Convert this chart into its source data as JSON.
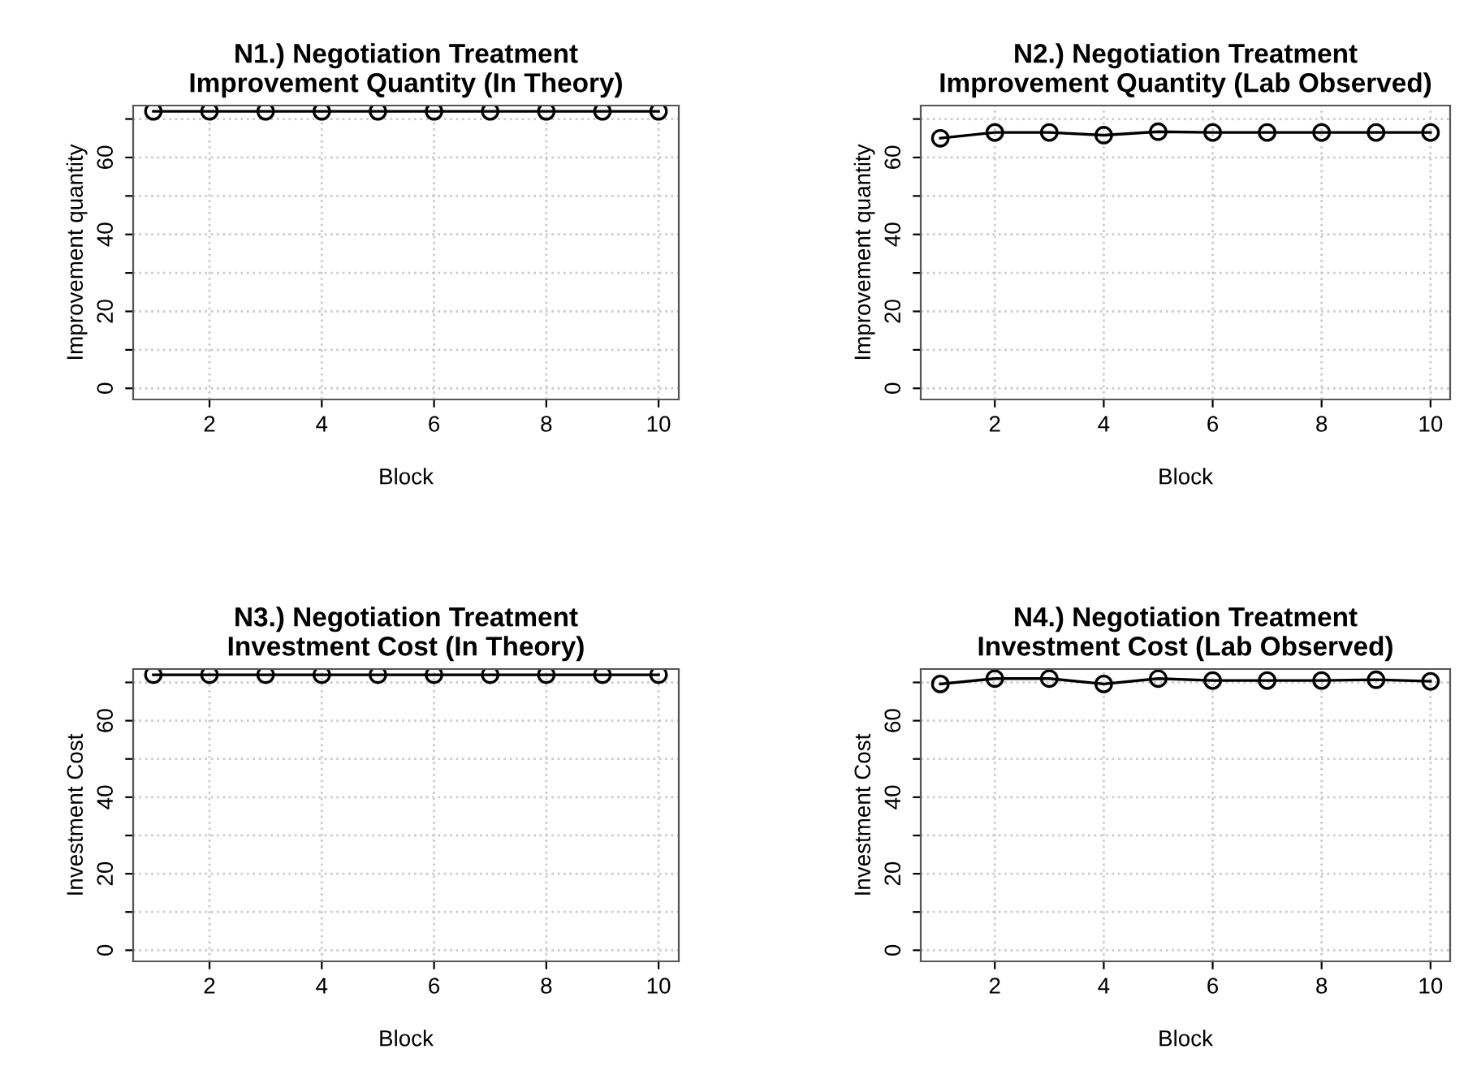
{
  "chart_data": [
    {
      "type": "line",
      "title": "N1.) Negotiation Treatment\nImprovement Quantity (In Theory)",
      "xlabel": "Block",
      "ylabel": "Improvement quantity",
      "x": [
        1,
        2,
        3,
        4,
        5,
        6,
        7,
        8,
        9,
        10
      ],
      "values": [
        72,
        72,
        72,
        72,
        72,
        72,
        72,
        72,
        72,
        72
      ],
      "color": "#000000",
      "marker": "circle",
      "line_style": "solid",
      "xlim": [
        0.64,
        10.36
      ],
      "xticks": [
        2,
        4,
        6,
        8,
        10
      ],
      "ylim": [
        -2.9,
        73.5
      ],
      "yticks": [
        0,
        {
          "value": 10,
          "label": null
        },
        20,
        {
          "value": 30,
          "label": null
        },
        40,
        {
          "value": 50,
          "label": null
        },
        60,
        {
          "value": 70,
          "label": null
        }
      ],
      "grid": true
    },
    {
      "type": "line",
      "title": "N2.) Negotiation Treatment\nImprovement Quantity (Lab Observed)",
      "xlabel": "Block",
      "ylabel": "Improvement quantity",
      "x": [
        1,
        2,
        3,
        4,
        5,
        6,
        7,
        8,
        9,
        10
      ],
      "values": [
        65,
        66.5,
        66.5,
        65.8,
        66.7,
        66.5,
        66.5,
        66.5,
        66.5,
        66.5
      ],
      "color": "#000000",
      "marker": "circle",
      "line_style": "solid",
      "xlim": [
        0.64,
        10.36
      ],
      "xticks": [
        2,
        4,
        6,
        8,
        10
      ],
      "ylim": [
        -2.9,
        73.5
      ],
      "yticks": [
        0,
        {
          "value": 10,
          "label": null
        },
        20,
        {
          "value": 30,
          "label": null
        },
        40,
        {
          "value": 50,
          "label": null
        },
        60,
        {
          "value": 70,
          "label": null
        }
      ],
      "grid": true
    },
    {
      "type": "line",
      "title": "N3.) Negotiation Treatment\nInvestment Cost (In Theory)",
      "xlabel": "Block",
      "ylabel": "Investment Cost",
      "x": [
        1,
        2,
        3,
        4,
        5,
        6,
        7,
        8,
        9,
        10
      ],
      "values": [
        72,
        72,
        72,
        72,
        72,
        72,
        72,
        72,
        72,
        72
      ],
      "color": "#000000",
      "marker": "circle",
      "line_style": "solid",
      "xlim": [
        0.64,
        10.36
      ],
      "xticks": [
        2,
        4,
        6,
        8,
        10
      ],
      "ylim": [
        -2.9,
        73.5
      ],
      "yticks": [
        0,
        {
          "value": 10,
          "label": null
        },
        20,
        {
          "value": 30,
          "label": null
        },
        40,
        {
          "value": 50,
          "label": null
        },
        60,
        {
          "value": 70,
          "label": null
        }
      ],
      "grid": true
    },
    {
      "type": "line",
      "title": "N4.) Negotiation Treatment\nInvestment Cost (Lab Observed)",
      "xlabel": "Block",
      "ylabel": "Investment Cost",
      "x": [
        1,
        2,
        3,
        4,
        5,
        6,
        7,
        8,
        9,
        10
      ],
      "values": [
        69.6,
        71,
        71,
        69.6,
        71,
        70.5,
        70.5,
        70.5,
        70.7,
        70.3
      ],
      "color": "#000000",
      "marker": "circle",
      "line_style": "solid",
      "xlim": [
        0.64,
        10.36
      ],
      "xticks": [
        2,
        4,
        6,
        8,
        10
      ],
      "ylim": [
        -2.9,
        73.5
      ],
      "yticks": [
        0,
        {
          "value": 10,
          "label": null
        },
        20,
        {
          "value": 30,
          "label": null
        },
        40,
        {
          "value": 50,
          "label": null
        },
        60,
        {
          "value": 70,
          "label": null
        }
      ],
      "grid": true
    }
  ]
}
